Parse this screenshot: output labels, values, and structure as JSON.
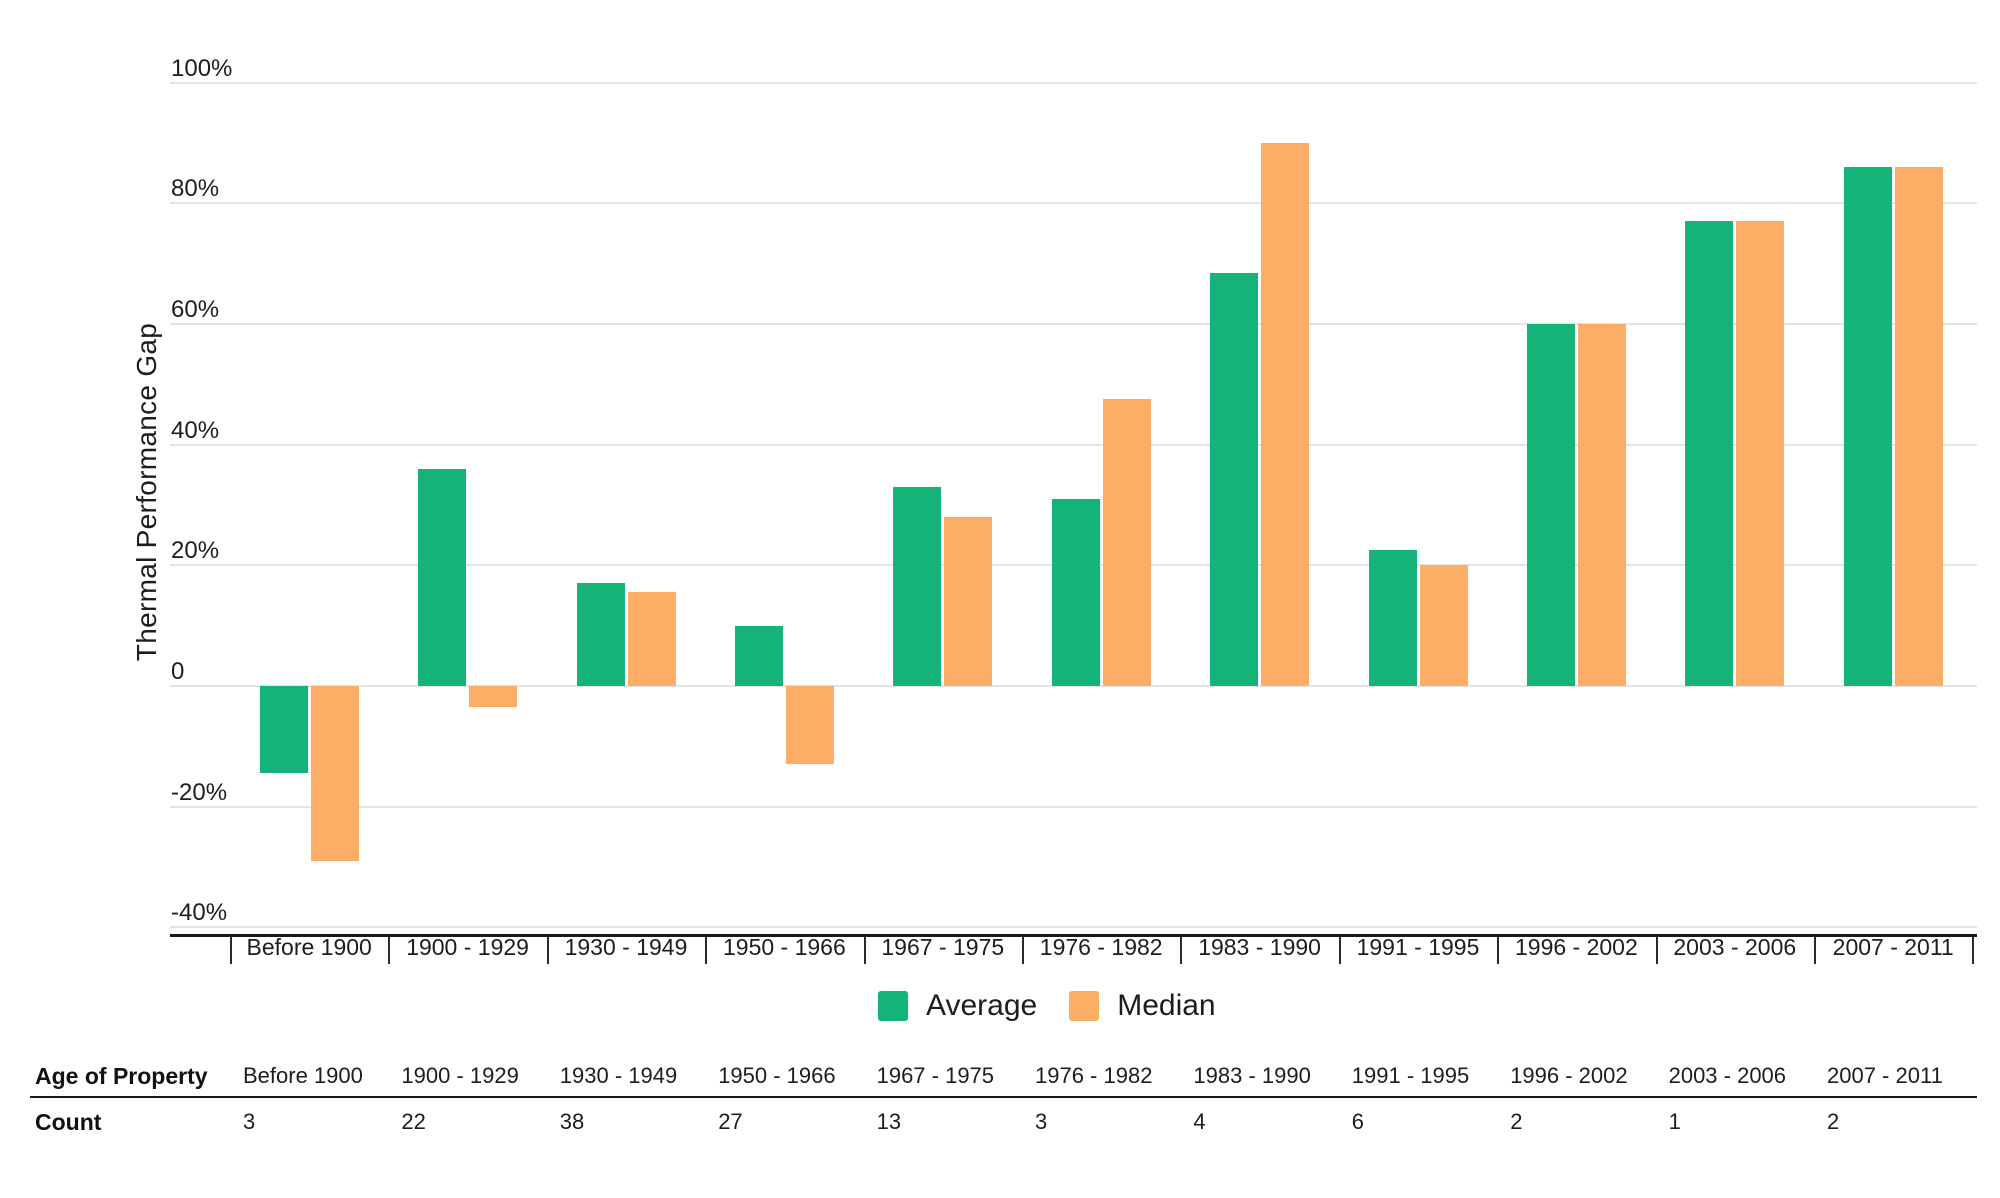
{
  "chart_data": {
    "type": "bar",
    "title": "",
    "xlabel": "",
    "ylabel": "Thermal Performance Gap",
    "units": "percent",
    "ylim": [
      -41,
      100
    ],
    "grid": true,
    "legend_position": "bottom-center",
    "categories": [
      "Before 1900",
      "1900 - 1929",
      "1930 - 1949",
      "1950 - 1966",
      "1967 - 1975",
      "1976 - 1982",
      "1983 - 1990",
      "1991 - 1995",
      "1996 - 2002",
      "2003 - 2006",
      "2007 - 2011"
    ],
    "series": [
      {
        "name": "Average",
        "color": "#14B377",
        "values": [
          -14.5,
          36,
          17,
          10,
          33,
          31,
          68.5,
          22.5,
          60,
          77,
          86
        ]
      },
      {
        "name": "Median",
        "color": "#FCAD66",
        "values": [
          -29,
          -3.5,
          15.5,
          -13,
          28,
          47.5,
          90,
          20,
          60,
          77,
          86
        ]
      }
    ],
    "y_ticks": [
      {
        "value": 100,
        "label": "100%"
      },
      {
        "value": 80,
        "label": "80%"
      },
      {
        "value": 60,
        "label": "60%"
      },
      {
        "value": 40,
        "label": "40%"
      },
      {
        "value": 20,
        "label": "20%"
      },
      {
        "value": 0,
        "label": "0"
      },
      {
        "value": -20,
        "label": "-20%"
      },
      {
        "value": -40,
        "label": "-40%"
      }
    ]
  },
  "legend": {
    "items": [
      {
        "label": "Average",
        "color": "#14B377"
      },
      {
        "label": "Median",
        "color": "#FCAD66"
      }
    ]
  },
  "table": {
    "rows": [
      {
        "header": "Age of Property",
        "values": [
          "Before 1900",
          "1900 - 1929",
          "1930 - 1949",
          "1950 - 1966",
          "1967 - 1975",
          "1976 - 1982",
          "1983 - 1990",
          "1991 - 1995",
          "1996 - 2002",
          "2003 - 2006",
          "2007 - 2011"
        ]
      },
      {
        "header": "Count",
        "values": [
          "3",
          "22",
          "38",
          "27",
          "13",
          "3",
          "4",
          "6",
          "2",
          "1",
          "2"
        ]
      }
    ]
  },
  "colors": {
    "average": "#14B377",
    "median": "#FCAD66",
    "text": "#1d1d1f",
    "gridline": "#e4e4e4",
    "axis": "#1a1a1a"
  }
}
